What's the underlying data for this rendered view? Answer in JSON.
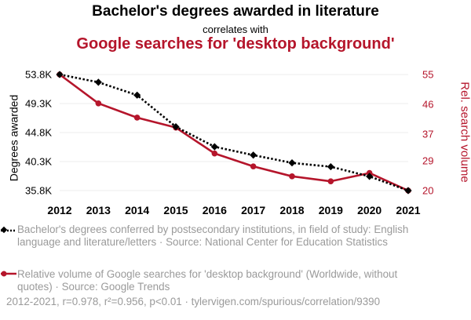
{
  "header": {
    "title": "Bachelor's degrees awarded in literature",
    "subtitle": "correlates with",
    "title2": "Google searches for 'desktop background'"
  },
  "colors": {
    "series1": "#000000",
    "series2": "#b5152b",
    "legend_text": "#9a9a9a"
  },
  "chart_data": {
    "type": "line",
    "x": [
      2012,
      2013,
      2014,
      2015,
      2016,
      2017,
      2018,
      2019,
      2020,
      2021
    ],
    "ylabel_left": "Degrees awarded",
    "ylabel_right": "Rel. search volume",
    "left_ticks": [
      "53.8K",
      "49.3K",
      "44.8K",
      "40.3K",
      "35.8K"
    ],
    "left_tick_values": [
      53800,
      49300,
      44800,
      40300,
      35800
    ],
    "right_ticks": [
      "55",
      "46",
      "37",
      "29",
      "20"
    ],
    "right_tick_values": [
      55,
      46,
      37,
      29,
      20
    ],
    "ylim_left": [
      35800,
      53800
    ],
    "ylim_right": [
      20,
      55
    ],
    "grid": true,
    "series": [
      {
        "axis": "left",
        "style": "dotted",
        "marker": "diamond",
        "values": [
          53800,
          52600,
          50600,
          45700,
          42600,
          41300,
          40100,
          39500,
          38000,
          35800
        ]
      },
      {
        "axis": "right",
        "style": "solid",
        "marker": "circle",
        "values": [
          55,
          46.3,
          42,
          39,
          31.2,
          27.3,
          24.3,
          22.8,
          25.3,
          20
        ]
      }
    ]
  },
  "legend": [
    {
      "text": "Bachelor's degrees conferred by postsecondary institutions, in field of study: English language and literature/letters · Source: National Center for Education Statistics"
    },
    {
      "text": "Relative volume of Google searches for 'desktop background' (Worldwide, without quotes) · Source: Google Trends"
    }
  ],
  "footer": "2012-2021, r=0.978, r²=0.956, p<0.01 · tylervigen.com/spurious/correlation/9390"
}
